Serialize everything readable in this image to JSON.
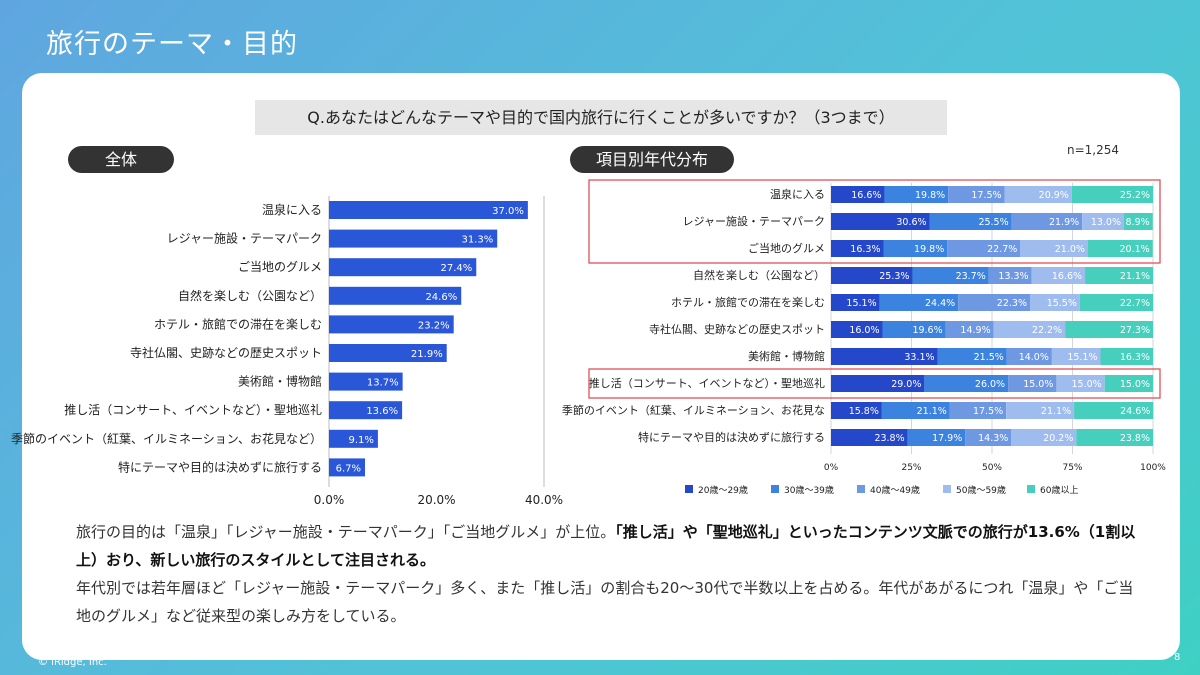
{
  "slide": {
    "title": "旅行のテーマ・目的",
    "question": "Q.あなたはどんなテーマや目的で国内旅行に行くことが多いですか？（3つまで）",
    "left_pill": "全体",
    "right_pill": "項目別年代分布",
    "sample_size": "n=1,254",
    "copyright": "© iRidge, Inc.",
    "page_number": "8"
  },
  "summary": {
    "p1_a": "旅行の目的は「温泉」「レジャー施設・テーマパーク」「ご当地グルメ」が上位。",
    "p1_b": "「推し活」や「聖地巡礼」といったコンテンツ文脈での旅行が13.6%（1割以上）おり、新しい旅行のスタイルとして注目される。",
    "p2": "年代別では若年層ほど「レジャー施設・テーマパーク」多く、また「推し活」の割合も20〜30代で半数以上を占める。年代があがるにつれ「温泉」や「ご当地のグルメ」など従来型の楽しみ方をしている。"
  },
  "colors": {
    "overall_bar": "#2a57d8",
    "age_20s": "#2547c9",
    "age_30s": "#3b83de",
    "age_40s": "#6f98e3",
    "age_50s": "#9fbcee",
    "age_60plus": "#45cfbc",
    "highlight_box": "#e0525a"
  },
  "chart_data": [
    {
      "type": "bar",
      "orientation": "horizontal",
      "categories": [
        "温泉に入る",
        "レジャー施設・テーマパーク",
        "ご当地のグルメ",
        "自然を楽しむ（公園など）",
        "ホテル・旅館での滞在を楽しむ",
        "寺社仏閣、史跡などの歴史スポット",
        "美術館・博物館",
        "推し活（コンサート、イベントなど）・聖地巡礼",
        "季節のイベント（紅葉、イルミネーション、お花見など）",
        "特にテーマや目的は決めずに旅行する"
      ],
      "values": [
        37.0,
        31.3,
        27.4,
        24.6,
        23.2,
        21.9,
        13.7,
        13.6,
        9.1,
        6.7
      ],
      "value_labels": [
        "37.0%",
        "31.3%",
        "27.4%",
        "24.6%",
        "23.2%",
        "21.9%",
        "13.7%",
        "13.6%",
        "9.1%",
        "6.7%"
      ],
      "xlim": [
        0,
        40
      ],
      "x_ticks": [
        "0.0%",
        "20.0%",
        "40.0%"
      ],
      "grid": false
    },
    {
      "type": "bar",
      "orientation": "horizontal",
      "stacked": "percent",
      "categories": [
        "温泉に入る",
        "レジャー施設・テーマパーク",
        "ご当地のグルメ",
        "自然を楽しむ（公園など）",
        "ホテル・旅館での滞在を楽しむ",
        "寺社仏閣、史跡などの歴史スポット",
        "美術館・博物館",
        "推し活（コンサート、イベントなど）・聖地巡礼",
        "季節のイベント（紅葉、イルミネーション、お花見な",
        "特にテーマや目的は決めずに旅行する"
      ],
      "series": [
        {
          "name": "20歳〜29歳",
          "values": [
            16.6,
            30.6,
            16.3,
            25.3,
            15.1,
            16.0,
            33.1,
            29.0,
            15.8,
            23.8
          ]
        },
        {
          "name": "30歳〜39歳",
          "values": [
            19.8,
            25.5,
            19.8,
            23.7,
            24.4,
            19.6,
            21.5,
            26.0,
            21.1,
            17.9
          ]
        },
        {
          "name": "40歳〜49歳",
          "values": [
            17.5,
            21.9,
            22.7,
            13.3,
            22.3,
            14.9,
            14.0,
            15.0,
            17.5,
            14.3
          ]
        },
        {
          "name": "50歳〜59歳",
          "values": [
            20.9,
            13.0,
            21.0,
            16.6,
            15.5,
            22.2,
            15.1,
            15.0,
            21.1,
            20.2
          ]
        },
        {
          "name": "60歳以上",
          "values": [
            25.2,
            8.9,
            20.1,
            21.1,
            22.7,
            27.3,
            16.3,
            15.0,
            24.6,
            23.8
          ]
        }
      ],
      "xlim": [
        0,
        100
      ],
      "x_ticks": [
        "0%",
        "25%",
        "50%",
        "75%",
        "100%"
      ],
      "legend_position": "bottom",
      "highlighted_groups": [
        [
          0,
          2
        ],
        [
          7,
          7
        ]
      ]
    }
  ]
}
